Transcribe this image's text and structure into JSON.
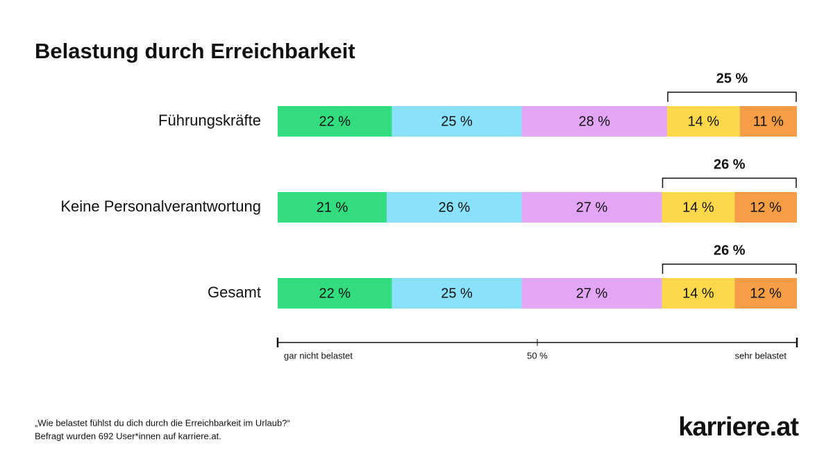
{
  "chart_data": {
    "type": "stacked_bar_horizontal",
    "title": "Belastung durch Erreichbarkeit",
    "categories": [
      "Führungskräfte",
      "Keine Personalverantwortung",
      "Gesamt"
    ],
    "series": [
      {
        "color": "#34dc80",
        "values": [
          22,
          21,
          22
        ],
        "value_labels": [
          "22 %",
          "21 %",
          "22 %"
        ]
      },
      {
        "color": "#8ae1fb",
        "values": [
          25,
          26,
          25
        ],
        "value_labels": [
          "25 %",
          "26 %",
          "25 %"
        ]
      },
      {
        "color": "#e3a5f5",
        "values": [
          28,
          27,
          27
        ],
        "value_labels": [
          "28 %",
          "27 %",
          "27 %"
        ]
      },
      {
        "color": "#fdd84b",
        "values": [
          14,
          14,
          14
        ],
        "value_labels": [
          "14 %",
          "14 %",
          "14 %"
        ]
      },
      {
        "color": "#f59e46",
        "values": [
          11,
          12,
          12
        ],
        "value_labels": [
          "11 %",
          "12 %",
          "12 %"
        ]
      }
    ],
    "bracket_totals": [
      {
        "value": 25,
        "label": "25 %"
      },
      {
        "value": 26,
        "label": "26 %"
      },
      {
        "value": 26,
        "label": "26 %"
      }
    ],
    "xlim": [
      0,
      100
    ],
    "xticks": [
      {
        "value": 0,
        "label": "gar nicht belastet"
      },
      {
        "value": 50,
        "label": "50 %"
      },
      {
        "value": 100,
        "label": "sehr belastet"
      }
    ],
    "notes": [
      "„Wie belastet fühlst du dich durch die Erreichbarkeit im Urlaub?“",
      "Befragt wurden 692 User*innen auf karriere.at."
    ],
    "logo": "karriere.at"
  }
}
